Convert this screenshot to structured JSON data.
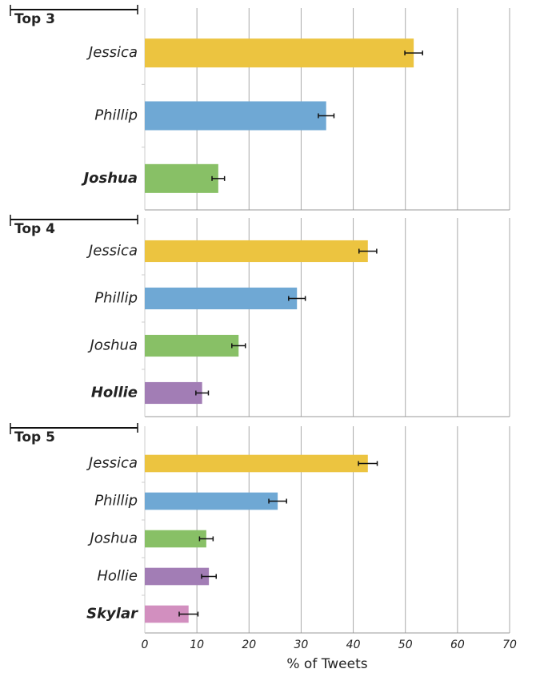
{
  "chart_data": [
    {
      "type": "bar",
      "title": "Top 3",
      "categories": [
        "Jessica",
        "Phillip",
        "Joshua"
      ],
      "values": [
        51.6,
        34.8,
        14.1
      ],
      "errors": [
        1.7,
        1.5,
        1.2
      ],
      "colors": [
        "#ecc440",
        "#6fa8d4",
        "#88c066"
      ],
      "category_label_colors": [
        "#222222",
        "#222222",
        "#e0303a"
      ],
      "category_label_weights": [
        "normal",
        "normal",
        "bold"
      ],
      "xlim": [
        0,
        70
      ],
      "xticks": [
        0,
        10,
        20,
        30,
        40,
        50,
        60,
        70
      ],
      "grid": true,
      "show_tick_labels": false
    },
    {
      "type": "bar",
      "title": "Top 4",
      "categories": [
        "Jessica",
        "Phillip",
        "Joshua",
        "Hollie"
      ],
      "values": [
        42.8,
        29.2,
        18.0,
        11.0
      ],
      "errors": [
        1.7,
        1.6,
        1.3,
        1.2
      ],
      "colors": [
        "#ecc440",
        "#6fa8d4",
        "#88c066",
        "#a27db5"
      ],
      "category_label_colors": [
        "#222222",
        "#222222",
        "#222222",
        "#e0303a"
      ],
      "category_label_weights": [
        "normal",
        "normal",
        "normal",
        "bold"
      ],
      "xlim": [
        0,
        70
      ],
      "xticks": [
        0,
        10,
        20,
        30,
        40,
        50,
        60,
        70
      ],
      "grid": true,
      "show_tick_labels": false
    },
    {
      "type": "bar",
      "title": "Top 5",
      "categories": [
        "Jessica",
        "Phillip",
        "Joshua",
        "Hollie",
        "Skylar"
      ],
      "values": [
        42.8,
        25.5,
        11.8,
        12.3,
        8.4
      ],
      "errors": [
        1.8,
        1.7,
        1.3,
        1.4,
        1.8
      ],
      "colors": [
        "#ecc440",
        "#6fa8d4",
        "#88c066",
        "#a27db5",
        "#d28fbf"
      ],
      "category_label_colors": [
        "#222222",
        "#222222",
        "#222222",
        "#222222",
        "#e0303a"
      ],
      "category_label_weights": [
        "normal",
        "normal",
        "normal",
        "normal",
        "bold"
      ],
      "xlim": [
        0,
        70
      ],
      "xticks": [
        0,
        10,
        20,
        30,
        40,
        50,
        60,
        70
      ],
      "grid": true,
      "show_tick_labels": true,
      "xlabel": "% of Tweets"
    }
  ]
}
